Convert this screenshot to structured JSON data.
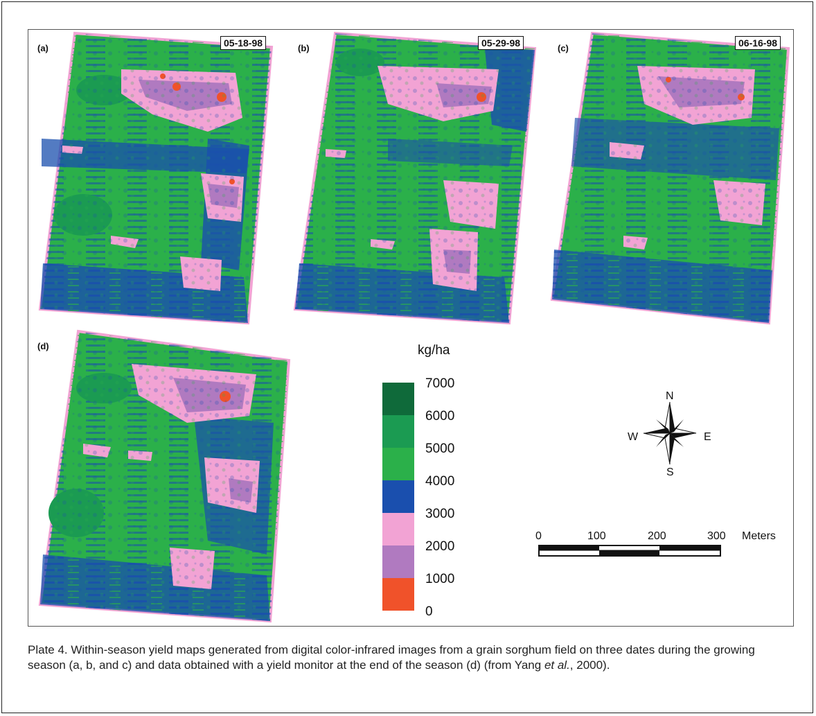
{
  "panels": [
    {
      "tag": "(a)",
      "date": "05-18-98"
    },
    {
      "tag": "(b)",
      "date": "05-29-98"
    },
    {
      "tag": "(c)",
      "date": "06-16-98"
    },
    {
      "tag": "(d)",
      "date": ""
    }
  ],
  "legend": {
    "unit": "kg/ha",
    "ticks": [
      "7000",
      "6000",
      "5000",
      "4000",
      "3000",
      "2000",
      "1000",
      "0"
    ],
    "colors": [
      "#0f6a3a",
      "#1b9b52",
      "#2bb04a",
      "#1a4fae",
      "#f2a3d4",
      "#b07ac0",
      "#f0522a"
    ]
  },
  "compass": {
    "n": "N",
    "s": "S",
    "e": "E",
    "w": "W"
  },
  "scale_bar": {
    "labels": [
      "0",
      "100",
      "200",
      "300"
    ],
    "unit": "Meters"
  },
  "caption": {
    "before_et": "Plate 4. Within-season yield maps generated from digital color-infrared images from a grain sorghum field on three dates during the growing season (a, b, and c) and data obtained with a yield monitor at the end of the season (d) (from Yang ",
    "et_al": "et al.",
    "after_et": ", 2000)."
  }
}
